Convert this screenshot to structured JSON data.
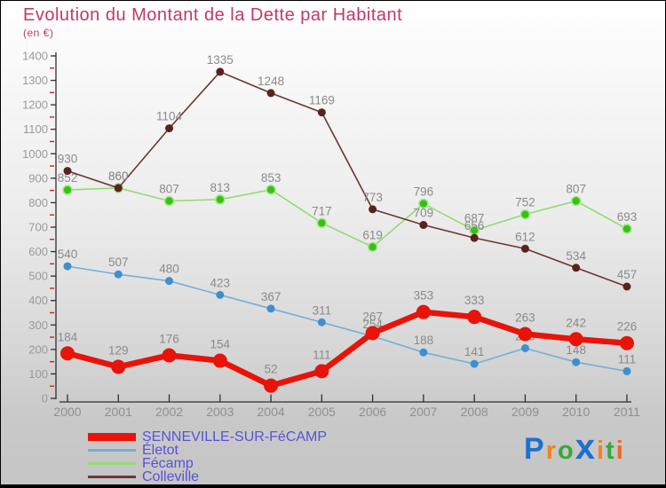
{
  "header": {
    "title": "Evolution du Montant de la Dette par Habitant",
    "subtitle": "(en €)",
    "title_color": "#c23a62"
  },
  "chart_data": {
    "type": "line",
    "title": "Evolution du Montant de la Dette par Habitant (en €)",
    "categories": [
      "2000",
      "2001",
      "2002",
      "2003",
      "2004",
      "2005",
      "2006",
      "2007",
      "2008",
      "2009",
      "2010",
      "2011"
    ],
    "series": [
      {
        "name": "SENNEVILLE-SUR-FéCAMP",
        "values": [
          184,
          129,
          176,
          154,
          52,
          111,
          267,
          353,
          333,
          263,
          242,
          226
        ],
        "line_color": "#e81309",
        "marker_color": "#e81309",
        "line_width": 6.5,
        "marker_radius": 8,
        "label_offset": 14
      },
      {
        "name": "Életot",
        "values": [
          540,
          507,
          480,
          423,
          367,
          311,
          254,
          188,
          141,
          205,
          148,
          111
        ],
        "line_color": "#74aed6",
        "marker_color": "#3f8fce",
        "line_width": 1.6,
        "marker_radius": 4.5,
        "label_offset": 9
      },
      {
        "name": "Fécamp",
        "values": [
          852,
          860,
          807,
          813,
          853,
          717,
          619,
          796,
          687,
          752,
          807,
          693
        ],
        "line_color": "#93da74",
        "marker_color": "#35c214",
        "marker_stroke": "#a9e68e",
        "line_width": 1.6,
        "marker_radius": 5,
        "label_offset": 9
      },
      {
        "name": "Colleville",
        "values": [
          930,
          860,
          1104,
          1335,
          1248,
          1169,
          773,
          709,
          656,
          612,
          534,
          457
        ],
        "line_color": "#6e3534",
        "marker_color": "#59221e",
        "line_width": 1.6,
        "marker_radius": 4.5,
        "label_offset": 9
      }
    ],
    "ylim": [
      0,
      1400
    ],
    "y_major_step": 100,
    "y_minor_step": 50,
    "grid": false,
    "legend_position": "bottom-left",
    "axis_color": "#2e2e2e",
    "minor_tick_color": "#cc2020",
    "tick_label_color": "#9a9a9a",
    "x_label_color": "#8f8f8f",
    "data_label_color": "#8a8a8a",
    "z_order": [
      2,
      3,
      1,
      0
    ]
  },
  "legend": {
    "text_color": "#5553d6"
  },
  "logo": {
    "text": "Proxiti",
    "letters": [
      {
        "ch": "P",
        "color": "#1e6fd2",
        "size": 34
      },
      {
        "ch": "r",
        "color": "#f5821f",
        "size": 29
      },
      {
        "ch": "o",
        "color": "#37a83c",
        "size": 29
      },
      {
        "ch": "x",
        "color": "#1e6fd2",
        "size": 40
      },
      {
        "ch": "i",
        "color": "#f5821f",
        "size": 29
      },
      {
        "ch": "t",
        "color": "#37a83c",
        "size": 29
      },
      {
        "ch": "i",
        "color": "#f26522",
        "size": 29
      }
    ]
  }
}
